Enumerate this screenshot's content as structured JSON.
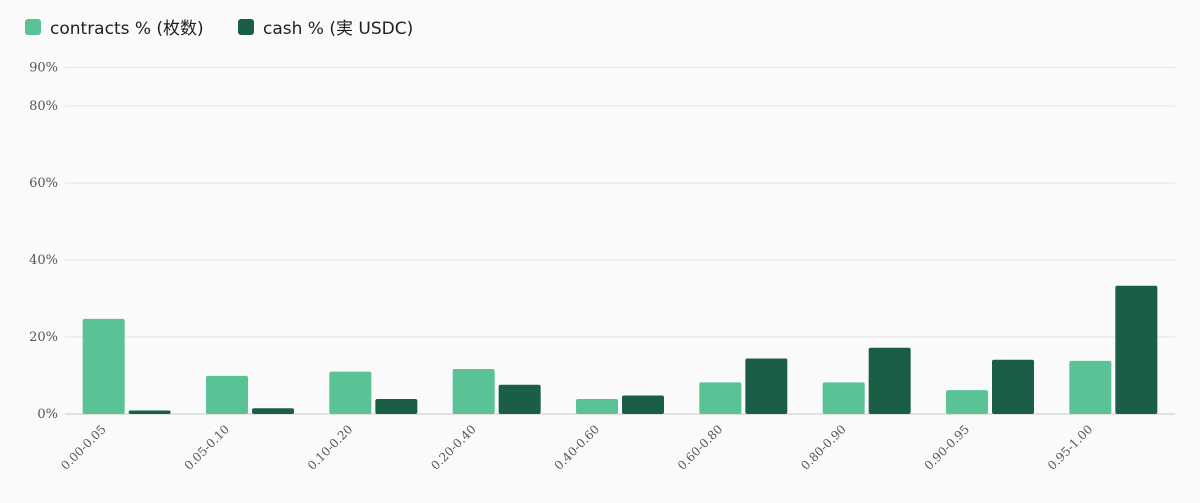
{
  "chart_data": {
    "type": "bar",
    "categories": [
      "0.00-0.05",
      "0.05-0.10",
      "0.10-0.20",
      "0.20-0.40",
      "0.40-0.60",
      "0.60-0.80",
      "0.80-0.90",
      "0.90-0.95",
      "0.95-1.00"
    ],
    "series": [
      {
        "name": "contracts % (枚数)",
        "color": "#5ac395",
        "values": [
          24.7,
          9.9,
          11.0,
          11.7,
          3.9,
          8.2,
          8.2,
          6.2,
          13.8
        ]
      },
      {
        "name": "cash % (実 USDC)",
        "color": "#1b5e46",
        "values": [
          0.9,
          1.5,
          3.9,
          7.6,
          4.8,
          14.4,
          17.2,
          14.1,
          33.3
        ]
      }
    ],
    "yticks": [
      0,
      20,
      40,
      60,
      80,
      90
    ],
    "ytick_labels": [
      "0%",
      "20%",
      "40%",
      "60%",
      "80%",
      "90%"
    ],
    "ylim": [
      0,
      90
    ],
    "grid": true,
    "legend_position": "top-left",
    "title": "",
    "xlabel": "",
    "ylabel": ""
  }
}
